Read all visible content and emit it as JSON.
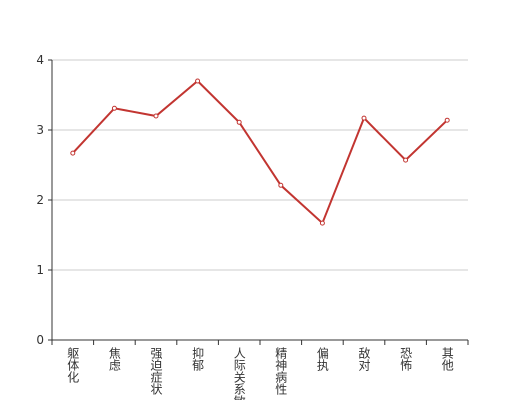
{
  "chart_data": {
    "type": "line",
    "categories": [
      "躯体化",
      "焦虑",
      "强迫症状",
      "抑郁",
      "人际关系敏感",
      "精神病性",
      "偏执",
      "敌对",
      "恐怖",
      "其他"
    ],
    "values": [
      2.67,
      3.31,
      3.2,
      3.7,
      3.11,
      2.21,
      1.67,
      3.17,
      2.57,
      3.14
    ],
    "color": "#c23531",
    "ylim": [
      0,
      4
    ],
    "yticks": [
      0,
      1,
      2,
      3,
      4
    ],
    "grid": true
  }
}
